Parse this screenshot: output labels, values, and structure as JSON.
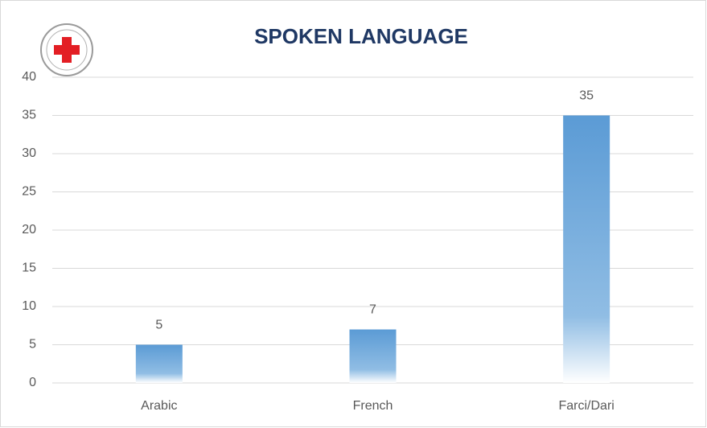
{
  "chart_data": {
    "type": "bar",
    "title": "SPOKEN LANGUAGE",
    "categories": [
      "Arabic",
      "French",
      "Farci/Dari"
    ],
    "values": [
      5,
      7,
      35
    ],
    "color": "#5b9bd5",
    "ylim": [
      0,
      40
    ],
    "yticks": [
      0,
      5,
      10,
      15,
      20,
      25,
      30,
      35,
      40
    ],
    "grid": true
  }
}
